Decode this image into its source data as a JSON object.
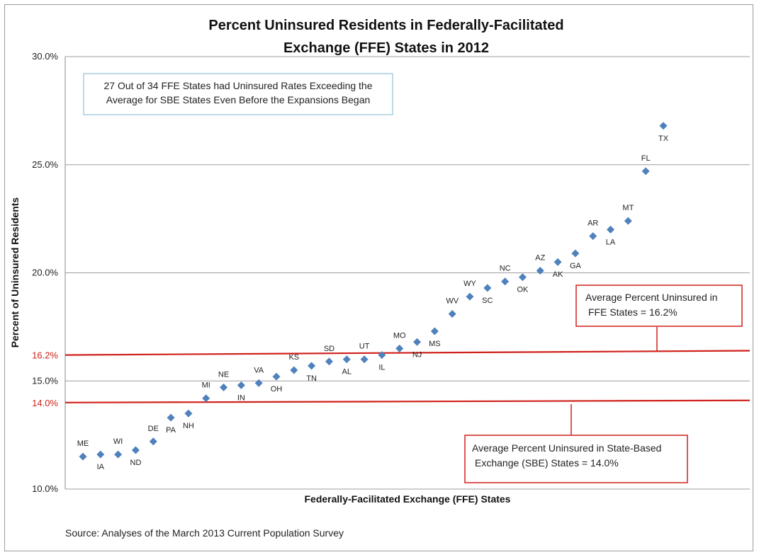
{
  "chart_data": {
    "type": "scatter",
    "title_lines": [
      "Percent Uninsured Residents in Federally-Facilitated",
      "Exchange (FFE) States in 2012"
    ],
    "xlabel": "Federally-Facilitated Exchange (FFE) States",
    "ylabel": "Percent of Uninsured Residents",
    "ylim": [
      10,
      30
    ],
    "yticks": [
      "10.0%",
      "15.0%",
      "20.0%",
      "25.0%",
      "30.0%"
    ],
    "ytick_values": [
      10,
      15,
      20,
      25,
      30
    ],
    "grid": true,
    "point_color": "#4f81bd",
    "points": [
      {
        "state": "ME",
        "value": 11.5,
        "label_pos": "above"
      },
      {
        "state": "IA",
        "value": 11.6,
        "label_pos": "below"
      },
      {
        "state": "WI",
        "value": 11.6,
        "label_pos": "above"
      },
      {
        "state": "ND",
        "value": 11.8,
        "label_pos": "below"
      },
      {
        "state": "DE",
        "value": 12.2,
        "label_pos": "above"
      },
      {
        "state": "PA",
        "value": 13.3,
        "label_pos": "below"
      },
      {
        "state": "NH",
        "value": 13.5,
        "label_pos": "below"
      },
      {
        "state": "MI",
        "value": 14.2,
        "label_pos": "above"
      },
      {
        "state": "NE",
        "value": 14.7,
        "label_pos": "above"
      },
      {
        "state": "IN",
        "value": 14.8,
        "label_pos": "below"
      },
      {
        "state": "VA",
        "value": 14.9,
        "label_pos": "above"
      },
      {
        "state": "OH",
        "value": 15.2,
        "label_pos": "below"
      },
      {
        "state": "KS",
        "value": 15.5,
        "label_pos": "above"
      },
      {
        "state": "TN",
        "value": 15.7,
        "label_pos": "below"
      },
      {
        "state": "SD",
        "value": 15.9,
        "label_pos": "above"
      },
      {
        "state": "AL",
        "value": 16.0,
        "label_pos": "below"
      },
      {
        "state": "UT",
        "value": 16.0,
        "label_pos": "above"
      },
      {
        "state": "IL",
        "value": 16.2,
        "label_pos": "below"
      },
      {
        "state": "MO",
        "value": 16.5,
        "label_pos": "above"
      },
      {
        "state": "NJ",
        "value": 16.8,
        "label_pos": "below"
      },
      {
        "state": "MS",
        "value": 17.3,
        "label_pos": "below"
      },
      {
        "state": "WV",
        "value": 18.1,
        "label_pos": "above"
      },
      {
        "state": "WY",
        "value": 18.9,
        "label_pos": "above"
      },
      {
        "state": "SC",
        "value": 19.3,
        "label_pos": "below"
      },
      {
        "state": "NC",
        "value": 19.6,
        "label_pos": "above"
      },
      {
        "state": "OK",
        "value": 19.8,
        "label_pos": "below"
      },
      {
        "state": "AZ",
        "value": 20.1,
        "label_pos": "above"
      },
      {
        "state": "AK",
        "value": 20.5,
        "label_pos": "below"
      },
      {
        "state": "GA",
        "value": 20.9,
        "label_pos": "below"
      },
      {
        "state": "AR",
        "value": 21.7,
        "label_pos": "above"
      },
      {
        "state": "LA",
        "value": 22.0,
        "label_pos": "below"
      },
      {
        "state": "MT",
        "value": 22.4,
        "label_pos": "above"
      },
      {
        "state": "FL",
        "value": 24.7,
        "label_pos": "above"
      },
      {
        "state": "TX",
        "value": 26.8,
        "label_pos": "below"
      }
    ],
    "reference_lines": [
      {
        "label": "16.2%",
        "value_left": 16.2,
        "value_right": 16.4,
        "color": "#d0211b"
      },
      {
        "label": "14.0%",
        "value_left": 14.0,
        "value_right": 14.1,
        "color": "#d0211b"
      }
    ],
    "annotations": {
      "top_note": [
        "27 Out of 34 FFE States had Uninsured Rates Exceeding the",
        "Average for SBE States Even Before the Expansions Began"
      ],
      "ffe_box": [
        "Average Percent Uninsured in",
        "FFE States =  16.2%"
      ],
      "sbe_box": [
        "Average Percent Uninsured in State-Based",
        "Exchange (SBE) States = 14.0%"
      ]
    },
    "source": "Source:  Analyses of the March 2013 Current Population Survey"
  }
}
